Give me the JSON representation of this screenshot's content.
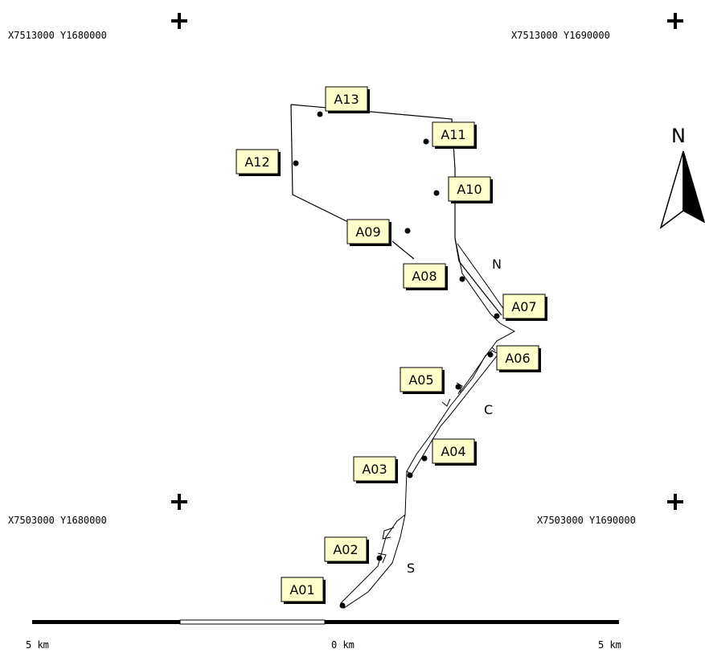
{
  "corners": [
    {
      "id": "nw",
      "text": "X7513000 Y1680000"
    },
    {
      "id": "ne",
      "text": "X7513000 Y1690000"
    },
    {
      "id": "sw",
      "text": "X7503000 Y1680000"
    },
    {
      "id": "se",
      "text": "X7503000 Y1690000"
    }
  ],
  "sites": [
    "A01",
    "A02",
    "A03",
    "A04",
    "A05",
    "A06",
    "A07",
    "A08",
    "A09",
    "A10",
    "A11",
    "A12",
    "A13"
  ],
  "zones": [
    "N",
    "C",
    "S"
  ],
  "north_arrow": {
    "letter": "N"
  },
  "scale_bar": {
    "left_label": "5 km",
    "center_label": "0 km",
    "right_label": "5 km"
  },
  "colors": {
    "label_fill": "#ffffcc",
    "label_shadow": "#000000",
    "line": "#000000"
  }
}
